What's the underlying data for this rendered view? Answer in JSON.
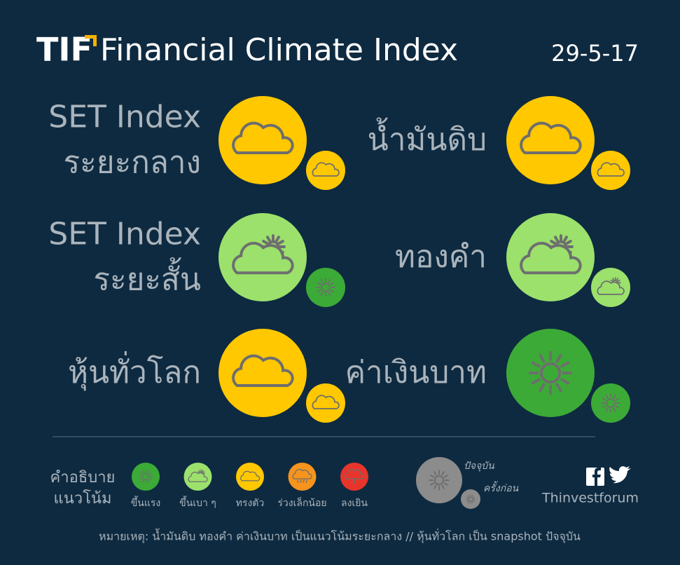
{
  "header": {
    "logo": "TIF",
    "title": "Financial Climate Index",
    "date": "29-5-17"
  },
  "items": [
    {
      "lines": [
        "SET Index",
        "ระยะกลาง"
      ],
      "current_color": "#ffc800",
      "previous_color": "#ffc800"
    },
    {
      "lines": [
        "น้ำมันดิบ"
      ],
      "current_color": "#ffc800",
      "previous_color": "#ffc800"
    },
    {
      "lines": [
        "SET Index",
        "ระยะสั้น"
      ],
      "current_color": "#9be16c",
      "previous_color": "#3caa37"
    },
    {
      "lines": [
        "ทองคำ"
      ],
      "current_color": "#9be16c",
      "previous_color": "#9be16c"
    },
    {
      "lines": [
        "หุ้นทั่วโลก"
      ],
      "current_color": "#ffc800",
      "previous_color": "#ffc800"
    },
    {
      "lines": [
        "ค่าเงินบาท"
      ],
      "current_color": "#3caa37",
      "previous_color": "#3caa37"
    }
  ],
  "legend": {
    "title": [
      "คำอธิบาย",
      "แนวโน้ม"
    ],
    "entries": [
      {
        "label": "ขึ้นแรง",
        "color": "#3caa37"
      },
      {
        "label": "ขึ้นเบา ๆ",
        "color": "#9be16c"
      },
      {
        "label": "ทรงตัว",
        "color": "#ffc800"
      },
      {
        "label": "ร่วงเล็กน้อย",
        "color": "#f7941d"
      },
      {
        "label": "ลงเยิน",
        "color": "#e8352b"
      }
    ],
    "current": "ปัจจุบัน",
    "previous": "ครั้งก่อน",
    "key_color": "#8c8c8c"
  },
  "brand": "Thinvestforum",
  "note": "หมายเหตุ: น้ำมันดิบ ทองคำ ค่าเงินบาท เป็นแนวโน้มระยะกลาง // หุ้นทั่วโลก เป็น snapshot ปัจจุบัน"
}
